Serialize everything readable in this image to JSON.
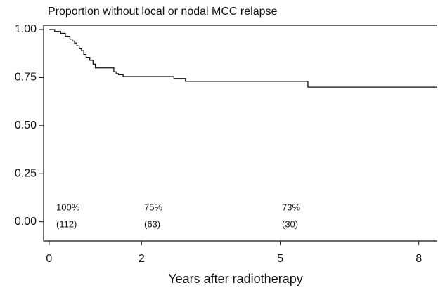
{
  "chart_data": {
    "type": "step",
    "title": "Proportion without local or nodal MCC relapse",
    "x_label": "Years after radiotherapy",
    "series": [
      {
        "name": "Proportion without local or nodal MCC relapse",
        "color": "#111111",
        "x": [
          0,
          0.12,
          0.25,
          0.35,
          0.45,
          0.5,
          0.55,
          0.6,
          0.65,
          0.7,
          0.75,
          0.8,
          0.88,
          0.95,
          1.0,
          1.4,
          1.45,
          1.5,
          1.6,
          2.7,
          2.95,
          5.6,
          8.4
        ],
        "values": [
          1.0,
          0.99,
          0.98,
          0.965,
          0.95,
          0.94,
          0.93,
          0.915,
          0.9,
          0.89,
          0.87,
          0.855,
          0.84,
          0.82,
          0.8,
          0.78,
          0.77,
          0.765,
          0.755,
          0.745,
          0.73,
          0.7,
          0.7
        ]
      }
    ],
    "annotations": [
      "100%",
      "(112)",
      "75%",
      "(63)",
      "73%",
      "(30)"
    ],
    "xlim": [
      -0.12,
      8.4
    ],
    "ylim": [
      -0.1,
      1.022
    ],
    "xticks": [
      0,
      2,
      5,
      8
    ],
    "yticks": [
      {
        "value": 0,
        "label": "0.00"
      },
      {
        "value": 0.25,
        "label": "0.25"
      },
      {
        "value": 0.5,
        "label": "0.50"
      },
      {
        "value": 0.75,
        "label": "0.75"
      },
      {
        "value": 1,
        "label": "1.00"
      }
    ]
  }
}
